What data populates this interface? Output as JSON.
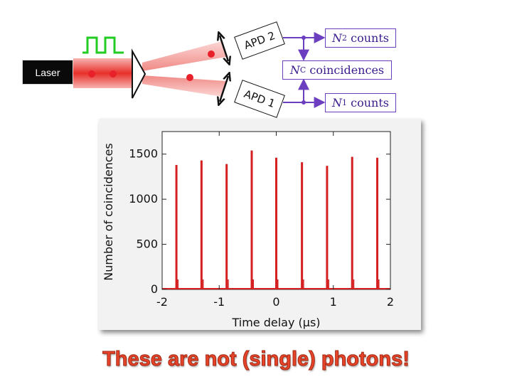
{
  "diagram": {
    "laser_label": "Laser",
    "apd_top": "APD 2",
    "apd_bottom": "APD 1",
    "n2_symbol": "N",
    "n2_sub": "2",
    "n2_text": " counts",
    "nc_symbol": "N",
    "nc_sub": "C",
    "nc_text": " coincidences",
    "n1_symbol": "N",
    "n1_sub": "1",
    "n1_text": " counts",
    "colors": {
      "beam": "#e8302a",
      "pulse": "#22cc22",
      "signal": "#6b3fbf"
    }
  },
  "chart_data": {
    "type": "bar",
    "xlabel": "Time delay (μs)",
    "ylabel": "Number of coincidences",
    "xlim": [
      -2,
      2
    ],
    "ylim": [
      0,
      1750
    ],
    "xticks": [
      "-2",
      "-1",
      "0",
      "1",
      "2"
    ],
    "yticks": [
      "0",
      "500",
      "1000",
      "1500"
    ],
    "x": [
      -1.75,
      -1.31,
      -0.87,
      -0.43,
      0.0,
      0.45,
      0.89,
      1.33,
      1.77
    ],
    "values": [
      1380,
      1430,
      1390,
      1540,
      1460,
      1410,
      1370,
      1470,
      1460
    ],
    "bar_color": "#d42020"
  },
  "headline": "These are not (single) photons!"
}
